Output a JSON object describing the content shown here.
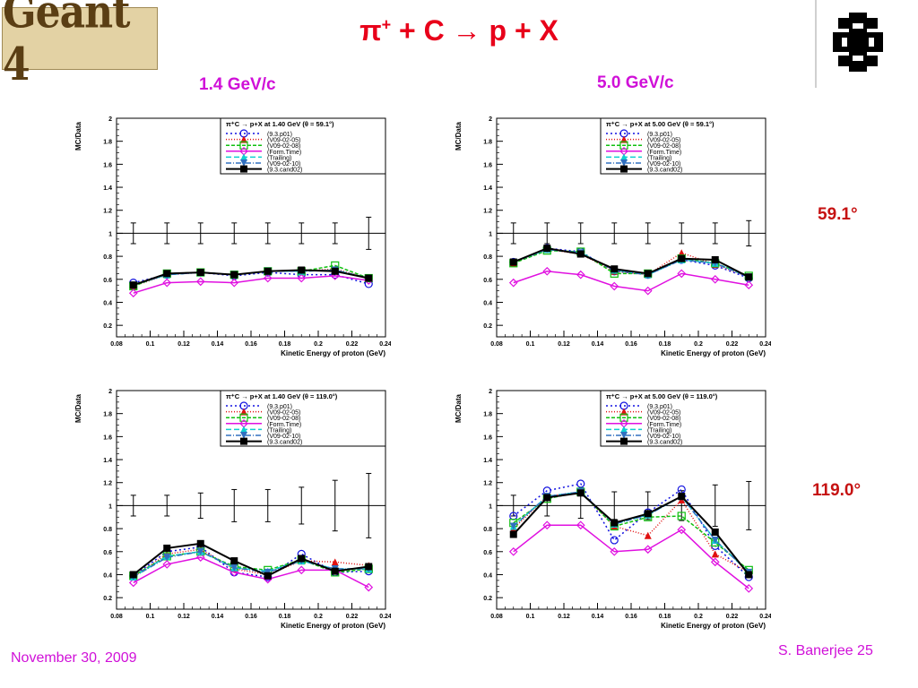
{
  "header": {
    "logo_text": "Geant 4",
    "title_pi": "π",
    "title_sup": "+",
    "title_rest": " + C → p + X"
  },
  "columns": [
    "1.4 GeV/c",
    "5.0 GeV/c"
  ],
  "angles": [
    "59.1°",
    "119.0°"
  ],
  "footer": {
    "date": "November 30, 2009",
    "author": "S. Banerjee  25"
  },
  "colors": {
    "magenta": "#d010d8",
    "red": "#c61212",
    "title_red": "#e8001a"
  },
  "chart_data": [
    {
      "type": "line",
      "legend_title": "π⁺C → p+X at 1.40 GeV (θ = 59.1°)",
      "xlabel": "Kinetic Energy of proton (GeV)",
      "ylabel": "MC/Data",
      "xlim": [
        0.08,
        0.24
      ],
      "ylim": [
        0.1,
        2.0
      ],
      "xticks": [
        0.08,
        0.1,
        0.12,
        0.14,
        0.16,
        0.18,
        0.2,
        0.22,
        0.24
      ],
      "yticks": [
        0.2,
        0.4,
        0.6,
        0.8,
        1,
        1.2,
        1.4,
        1.6,
        1.8,
        2
      ],
      "x": [
        0.09,
        0.11,
        0.13,
        0.15,
        0.17,
        0.19,
        0.21,
        0.23
      ],
      "errors": [
        0.09,
        0.09,
        0.09,
        0.09,
        0.09,
        0.09,
        0.09,
        0.14
      ],
      "series": [
        {
          "name": "(9.3.p01)",
          "color": "#1010e0",
          "dash": "2,3",
          "marker": "circle",
          "values": [
            0.57,
            0.64,
            0.66,
            0.63,
            0.66,
            0.64,
            0.64,
            0.56
          ]
        },
        {
          "name": "(V09-02-05)",
          "color": "#e01010",
          "dash": "1,2",
          "marker": "triangle",
          "values": [
            0.54,
            0.64,
            0.66,
            0.64,
            0.67,
            0.67,
            0.69,
            0.61
          ]
        },
        {
          "name": "(V09-02-08)",
          "color": "#10c010",
          "dash": "4,2",
          "marker": "square-open",
          "values": [
            0.54,
            0.65,
            0.66,
            0.64,
            0.67,
            0.67,
            0.72,
            0.61
          ]
        },
        {
          "name": "(Form.Time)",
          "color": "#e010e0",
          "dash": "",
          "marker": "diamond",
          "values": [
            0.48,
            0.57,
            0.58,
            0.57,
            0.61,
            0.61,
            0.63,
            0.59
          ]
        },
        {
          "name": "(Trailing)",
          "color": "#10d0d0",
          "dash": "6,3",
          "marker": "triangle",
          "values": [
            0.55,
            0.64,
            0.66,
            0.64,
            0.67,
            0.67,
            0.68,
            0.61
          ]
        },
        {
          "name": "(V09-02-10)",
          "color": "#3070c0",
          "dash": "6,2,1,2",
          "marker": "triangle-down",
          "values": [
            0.55,
            0.64,
            0.66,
            0.64,
            0.67,
            0.67,
            0.68,
            0.61
          ]
        },
        {
          "name": "(9.3.cand02)",
          "color": "#000000",
          "dash": "",
          "marker": "square",
          "values": [
            0.55,
            0.65,
            0.66,
            0.64,
            0.67,
            0.68,
            0.67,
            0.61
          ]
        }
      ]
    },
    {
      "type": "line",
      "legend_title": "π⁺C → p+X at 5.00 GeV (θ = 59.1°)",
      "xlabel": "Kinetic Energy of proton (GeV)",
      "ylabel": "MC/Data",
      "xlim": [
        0.08,
        0.24
      ],
      "ylim": [
        0.1,
        2.0
      ],
      "xticks": [
        0.08,
        0.1,
        0.12,
        0.14,
        0.16,
        0.18,
        0.2,
        0.22,
        0.24
      ],
      "yticks": [
        0.2,
        0.4,
        0.6,
        0.8,
        1,
        1.2,
        1.4,
        1.6,
        1.8,
        2
      ],
      "x": [
        0.09,
        0.11,
        0.13,
        0.15,
        0.17,
        0.19,
        0.21,
        0.23
      ],
      "errors": [
        0.09,
        0.09,
        0.09,
        0.09,
        0.09,
        0.09,
        0.09,
        0.11
      ],
      "series": [
        {
          "name": "(9.3.p01)",
          "color": "#1010e0",
          "dash": "2,3",
          "marker": "circle",
          "values": [
            0.75,
            0.87,
            0.84,
            0.67,
            0.64,
            0.77,
            0.72,
            0.61
          ]
        },
        {
          "name": "(V09-02-05)",
          "color": "#e01010",
          "dash": "1,2",
          "marker": "triangle",
          "values": [
            0.74,
            0.86,
            0.82,
            0.67,
            0.64,
            0.83,
            0.73,
            0.62
          ]
        },
        {
          "name": "(V09-02-08)",
          "color": "#10c010",
          "dash": "4,2",
          "marker": "square-open",
          "values": [
            0.74,
            0.85,
            0.84,
            0.65,
            0.65,
            0.78,
            0.74,
            0.63
          ]
        },
        {
          "name": "(Form.Time)",
          "color": "#e010e0",
          "dash": "",
          "marker": "diamond",
          "values": [
            0.57,
            0.67,
            0.64,
            0.54,
            0.5,
            0.65,
            0.6,
            0.55
          ]
        },
        {
          "name": "(Trailing)",
          "color": "#10d0d0",
          "dash": "6,3",
          "marker": "triangle",
          "values": [
            0.75,
            0.86,
            0.83,
            0.68,
            0.64,
            0.77,
            0.74,
            0.62
          ]
        },
        {
          "name": "(V09-02-10)",
          "color": "#3070c0",
          "dash": "6,2,1,2",
          "marker": "triangle-down",
          "values": [
            0.75,
            0.86,
            0.83,
            0.68,
            0.64,
            0.77,
            0.74,
            0.62
          ]
        },
        {
          "name": "(9.3.cand02)",
          "color": "#000000",
          "dash": "",
          "marker": "square",
          "values": [
            0.75,
            0.87,
            0.82,
            0.69,
            0.65,
            0.78,
            0.77,
            0.62
          ]
        }
      ]
    },
    {
      "type": "line",
      "legend_title": "π⁺C → p+X at 1.40 GeV (θ = 119.0°)",
      "xlabel": "Kinetic Energy of proton (GeV)",
      "ylabel": "MC/Data",
      "xlim": [
        0.08,
        0.24
      ],
      "ylim": [
        0.1,
        2.0
      ],
      "xticks": [
        0.08,
        0.1,
        0.12,
        0.14,
        0.16,
        0.18,
        0.2,
        0.22,
        0.24
      ],
      "yticks": [
        0.2,
        0.4,
        0.6,
        0.8,
        1,
        1.2,
        1.4,
        1.6,
        1.8,
        2
      ],
      "x": [
        0.09,
        0.11,
        0.13,
        0.15,
        0.17,
        0.19,
        0.21,
        0.23
      ],
      "errors": [
        0.09,
        0.09,
        0.11,
        0.14,
        0.14,
        0.16,
        0.22,
        0.28
      ],
      "series": [
        {
          "name": "(9.3.p01)",
          "color": "#1010e0",
          "dash": "2,3",
          "marker": "circle",
          "values": [
            0.39,
            0.6,
            0.64,
            0.42,
            0.38,
            0.58,
            0.42,
            0.43
          ]
        },
        {
          "name": "(V09-02-05)",
          "color": "#e01010",
          "dash": "1,2",
          "marker": "triangle",
          "values": [
            0.38,
            0.58,
            0.62,
            0.45,
            0.4,
            0.52,
            0.51,
            0.48
          ]
        },
        {
          "name": "(V09-02-08)",
          "color": "#10c010",
          "dash": "4,2",
          "marker": "square-open",
          "values": [
            0.39,
            0.56,
            0.6,
            0.47,
            0.44,
            0.53,
            0.42,
            0.45
          ]
        },
        {
          "name": "(Form.Time)",
          "color": "#e010e0",
          "dash": "",
          "marker": "diamond",
          "values": [
            0.33,
            0.49,
            0.55,
            0.42,
            0.36,
            0.44,
            0.44,
            0.29
          ]
        },
        {
          "name": "(Trailing)",
          "color": "#10d0d0",
          "dash": "6,3",
          "marker": "triangle",
          "values": [
            0.38,
            0.56,
            0.6,
            0.46,
            0.43,
            0.52,
            0.45,
            0.45
          ]
        },
        {
          "name": "(V09-02-10)",
          "color": "#3070c0",
          "dash": "6,2,1,2",
          "marker": "triangle-down",
          "values": [
            0.38,
            0.55,
            0.6,
            0.46,
            0.42,
            0.52,
            0.45,
            0.45
          ]
        },
        {
          "name": "(9.3.cand02)",
          "color": "#000000",
          "dash": "",
          "marker": "square",
          "values": [
            0.4,
            0.63,
            0.67,
            0.52,
            0.39,
            0.54,
            0.43,
            0.47
          ]
        }
      ]
    },
    {
      "type": "line",
      "legend_title": "π⁺C → p+X at 5.00 GeV (θ = 119.0°)",
      "xlabel": "Kinetic Energy of proton (GeV)",
      "ylabel": "MC/Data",
      "xlim": [
        0.08,
        0.24
      ],
      "ylim": [
        0.1,
        2.0
      ],
      "xticks": [
        0.08,
        0.1,
        0.12,
        0.14,
        0.16,
        0.18,
        0.2,
        0.22,
        0.24
      ],
      "yticks": [
        0.2,
        0.4,
        0.6,
        0.8,
        1,
        1.2,
        1.4,
        1.6,
        1.8,
        2
      ],
      "x": [
        0.09,
        0.11,
        0.13,
        0.15,
        0.17,
        0.19,
        0.21,
        0.23
      ],
      "errors": [
        0.09,
        0.09,
        0.11,
        0.12,
        0.12,
        0.13,
        0.18,
        0.21
      ],
      "series": [
        {
          "name": "(9.3.p01)",
          "color": "#1010e0",
          "dash": "2,3",
          "marker": "circle",
          "values": [
            0.91,
            1.13,
            1.19,
            0.7,
            0.94,
            1.14,
            0.65,
            0.38
          ]
        },
        {
          "name": "(V09-02-05)",
          "color": "#e01010",
          "dash": "1,2",
          "marker": "triangle",
          "values": [
            0.8,
            1.08,
            1.12,
            0.82,
            0.74,
            1.05,
            0.58,
            0.42
          ]
        },
        {
          "name": "(V09-02-08)",
          "color": "#10c010",
          "dash": "4,2",
          "marker": "square-open",
          "values": [
            0.85,
            1.06,
            1.12,
            0.82,
            0.9,
            0.91,
            0.68,
            0.44
          ]
        },
        {
          "name": "(Form.Time)",
          "color": "#e010e0",
          "dash": "",
          "marker": "diamond",
          "values": [
            0.6,
            0.83,
            0.83,
            0.6,
            0.62,
            0.79,
            0.51,
            0.28
          ]
        },
        {
          "name": "(Trailing)",
          "color": "#10d0d0",
          "dash": "6,3",
          "marker": "triangle",
          "values": [
            0.82,
            1.08,
            1.12,
            0.84,
            0.92,
            1.08,
            0.7,
            0.42
          ]
        },
        {
          "name": "(V09-02-10)",
          "color": "#3070c0",
          "dash": "6,2,1,2",
          "marker": "triangle-down",
          "values": [
            0.82,
            1.08,
            1.12,
            0.84,
            0.92,
            1.08,
            0.7,
            0.42
          ]
        },
        {
          "name": "(9.3.cand02)",
          "color": "#000000",
          "dash": "",
          "marker": "square",
          "values": [
            0.75,
            1.07,
            1.11,
            0.85,
            0.93,
            1.08,
            0.77,
            0.4
          ]
        }
      ]
    }
  ]
}
